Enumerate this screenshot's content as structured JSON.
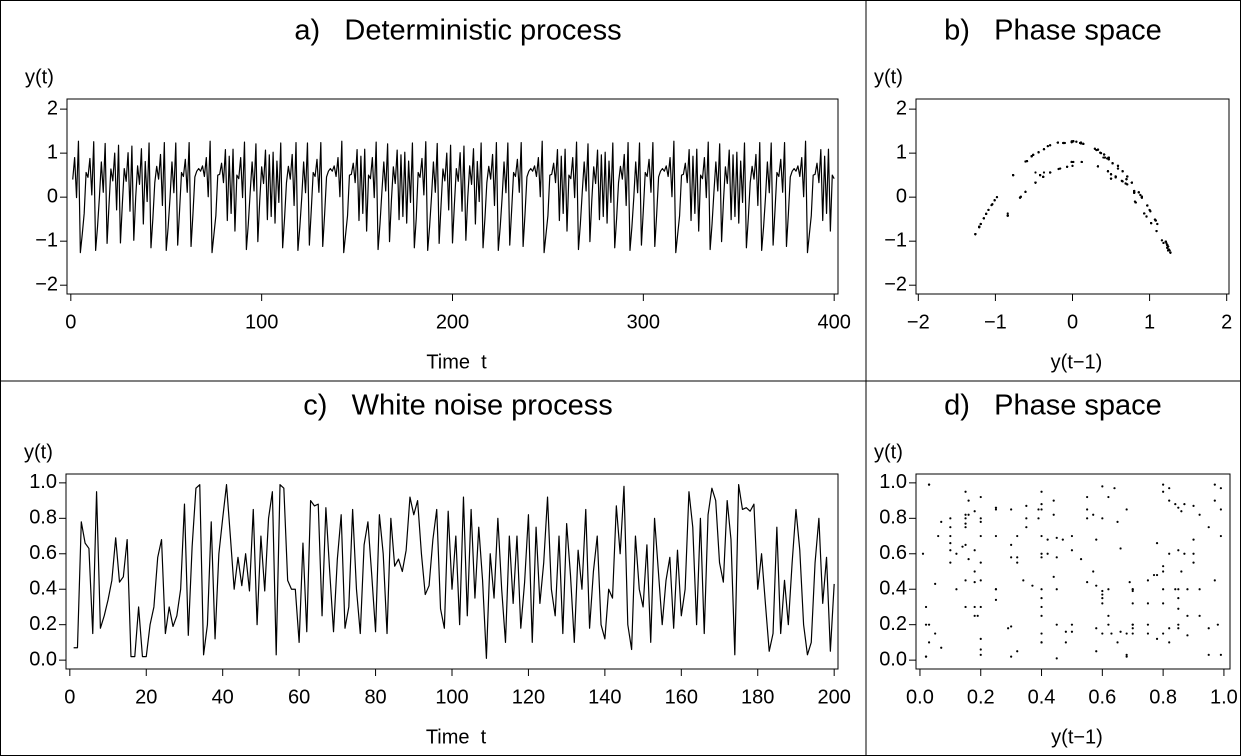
{
  "chart_data": [
    {
      "type": "line",
      "title": "a)   Deterministic process",
      "ylabel": "y(t)",
      "xlabel": "Time  t",
      "color": "#000000",
      "xlim": [
        -2,
        402
      ],
      "ylim": [
        -2.2,
        2.23
      ],
      "xticks": [
        0,
        100,
        200,
        300,
        400
      ],
      "yticks": [
        {
          "value": -2,
          "label": "−2"
        },
        {
          "value": -1,
          "label": "−1"
        },
        0,
        1,
        2
      ],
      "x": [
        1,
        2,
        3,
        4,
        5,
        6,
        7,
        8,
        9,
        10,
        11,
        12,
        13,
        14,
        15,
        16,
        17,
        18,
        19,
        20,
        21,
        22,
        23,
        24,
        25,
        26,
        27,
        28,
        29,
        30,
        31,
        32,
        33,
        34,
        35,
        36,
        37,
        38,
        39,
        40,
        41,
        42,
        43,
        44,
        45,
        46,
        47,
        48,
        49,
        50,
        51,
        52,
        53,
        54,
        55,
        56,
        57,
        58,
        59,
        60,
        61,
        62,
        63,
        64,
        65,
        66,
        67,
        68,
        69,
        70,
        71,
        72,
        73,
        74,
        75,
        76,
        77,
        78,
        79,
        80,
        81,
        82,
        83,
        84,
        85,
        86,
        87,
        88,
        89,
        90,
        91,
        92,
        93,
        94,
        95,
        96,
        97,
        98,
        99,
        100,
        101,
        102,
        103,
        104,
        105,
        106,
        107,
        108,
        109,
        110,
        111,
        112,
        113,
        114,
        115,
        116,
        117,
        118,
        119,
        120,
        121,
        122,
        123,
        124,
        125,
        126,
        127,
        128,
        129,
        130,
        131,
        132,
        133,
        134,
        135,
        136,
        137,
        138,
        139,
        140,
        141,
        142,
        143,
        144,
        145,
        146,
        147,
        148,
        149,
        150,
        151,
        152,
        153,
        154,
        155,
        156,
        157,
        158,
        159,
        160,
        161,
        162,
        163,
        164,
        165,
        166,
        167,
        168,
        169,
        170,
        171,
        172,
        173,
        174,
        175,
        176,
        177,
        178,
        179,
        180,
        181,
        182,
        183,
        184,
        185,
        186,
        187,
        188,
        189,
        190,
        191,
        192,
        193,
        194,
        195,
        196,
        197,
        198,
        199,
        200,
        201,
        202,
        203,
        204,
        205,
        206,
        207,
        208,
        209,
        210,
        211,
        212,
        213,
        214,
        215,
        216,
        217,
        218,
        219,
        220,
        221,
        222,
        223,
        224,
        225,
        226,
        227,
        228,
        229,
        230,
        231,
        232,
        233,
        234,
        235,
        236,
        237,
        238,
        239,
        240,
        241,
        242,
        243,
        244,
        245,
        246,
        247,
        248,
        249,
        250,
        251,
        252,
        253,
        254,
        255,
        256,
        257,
        258,
        259,
        260,
        261,
        262,
        263,
        264,
        265,
        266,
        267,
        268,
        269,
        270,
        271,
        272,
        273,
        274,
        275,
        276,
        277,
        278,
        279,
        280,
        281,
        282,
        283,
        284,
        285,
        286,
        287,
        288,
        289,
        290,
        291,
        292,
        293,
        294,
        295,
        296,
        297,
        298,
        299,
        300,
        301,
        302,
        303,
        304,
        305,
        306,
        307,
        308,
        309,
        310,
        311,
        312,
        313,
        314,
        315,
        316,
        317,
        318,
        319,
        320,
        321,
        322,
        323,
        324,
        325,
        326,
        327,
        328,
        329,
        330,
        331,
        332,
        333,
        334,
        335,
        336,
        337,
        338,
        339,
        340,
        341,
        342,
        343,
        344,
        345,
        346,
        347,
        348,
        349,
        350,
        351,
        352,
        353,
        354,
        355,
        356,
        357,
        358,
        359,
        360,
        361,
        362,
        363,
        364,
        365,
        366,
        367,
        368,
        369,
        370,
        371,
        372,
        373,
        374,
        375,
        376,
        377,
        378,
        379,
        380,
        381,
        382,
        383,
        384,
        385,
        386,
        387,
        388,
        389,
        390,
        391,
        392,
        393,
        394,
        395,
        396,
        397,
        398,
        399,
        400
      ],
      "values": [
        0.4,
        0.9,
        -0.01,
        1.27,
        -1.26,
        -0.84,
        -0.37,
        0.56,
        0.45,
        0.88,
        0.05,
        1.26,
        -1.21,
        -0.67,
        0.01,
        0.8,
        0.11,
        1.22,
        -1.05,
        -0.18,
        0.64,
        0.37,
        1.0,
        -0.29,
        1.18,
        -1.04,
        -0.16,
        0.65,
        0.36,
        1.01,
        -0.32,
        1.16,
        -0.98,
        0.0,
        0.71,
        0.29,
        1.1,
        -0.61,
        0.81,
        -0.1,
        1.23,
        -1.15,
        -0.48,
        0.33,
        0.7,
        0.41,
        0.97,
        -0.19,
        1.24,
        -1.21,
        -0.68,
        -0.01,
        0.8,
        0.1,
        1.23,
        -1.09,
        -0.29,
        0.56,
        0.47,
        0.86,
        0.11,
        1.24,
        -1.12,
        -0.38,
        0.46,
        0.59,
        0.65,
        0.59,
        0.71,
        0.47,
        0.9,
        0.01,
        1.27,
        -1.26,
        -0.84,
        -0.42,
        0.5,
        0.52,
        0.77,
        0.33,
        1.08,
        -0.53,
        0.93,
        -0.37,
        1.09,
        -0.77,
        0.5,
        0.42,
        0.9,
        -0.01,
        1.25,
        -1.19,
        -0.61,
        0.12,
        0.8,
        0.14,
        1.21,
        -1.01,
        -0.07,
        0.69,
        0.31,
        1.07,
        -0.51,
        0.96,
        -0.44,
        1.02,
        -0.59,
        0.82,
        -0.12,
        1.23,
        -1.15,
        -0.48,
        0.33,
        0.7,
        0.41,
        0.97,
        -0.19,
        1.24,
        -1.21,
        -0.68,
        -0.01,
        0.8,
        0.1,
        1.23,
        -1.09,
        -0.29,
        0.56,
        0.47,
        0.86,
        0.11,
        1.24,
        -1.12,
        -0.38,
        0.46,
        0.59,
        0.65,
        0.59,
        0.71,
        0.47,
        0.9,
        0.01,
        1.27,
        -1.26,
        -0.84,
        -0.42,
        0.5,
        0.52,
        0.77,
        0.33,
        1.08,
        -0.53,
        0.93,
        -0.37,
        1.09,
        -0.77,
        0.5,
        0.42,
        0.9,
        -0.01,
        1.25,
        -1.19,
        -0.61,
        0.12,
        0.8,
        0.14,
        1.21,
        -1.01,
        -0.07,
        0.69,
        0.31,
        1.07,
        -0.51,
        0.96,
        -0.44,
        1.02,
        -0.59,
        0.82,
        -0.12,
        1.23,
        -1.15,
        -0.48,
        0.56,
        0.45,
        0.88,
        0.05,
        1.26,
        -1.21,
        -0.67,
        0.01,
        0.8,
        0.11,
        1.22,
        -1.05,
        -0.18,
        0.64,
        0.37,
        1.0,
        -0.29,
        1.18,
        -1.04,
        -0.16,
        0.65,
        0.36,
        1.01,
        -0.32,
        1.16,
        -0.98,
        0.0,
        0.71,
        0.29,
        1.1,
        -0.61,
        0.81,
        -0.1,
        1.23,
        -1.15,
        -0.48,
        0.33,
        0.7,
        0.41,
        0.97,
        -0.19,
        1.24,
        -1.21,
        -0.68,
        -0.01,
        0.8,
        0.1,
        1.23,
        -1.09,
        -0.29,
        0.56,
        0.47,
        0.86,
        0.11,
        1.24,
        -1.12,
        -0.38,
        0.46,
        0.59,
        0.65,
        0.59,
        0.71,
        0.47,
        0.9,
        0.01,
        1.27,
        -1.26,
        -0.84,
        -0.42,
        0.5,
        0.52,
        0.77,
        0.33,
        1.08,
        -0.53,
        0.93,
        -0.37,
        1.09,
        -0.77,
        0.5,
        0.42,
        0.9,
        -0.01,
        1.25,
        -1.19,
        -0.61,
        0.12,
        0.8,
        0.14,
        1.21,
        -1.01,
        -0.07,
        0.69,
        0.31,
        1.07,
        -0.51,
        0.96,
        -0.44,
        1.02,
        -0.59,
        0.82,
        -0.12,
        1.23,
        -1.15,
        -0.48,
        0.33,
        0.7,
        0.41,
        0.97,
        -0.19,
        1.24,
        -1.21,
        -0.68,
        -0.01,
        0.8,
        0.1,
        1.23,
        -1.09,
        -0.29,
        0.56,
        0.47,
        0.86,
        0.11,
        1.24,
        -1.12,
        -0.38,
        0.46,
        0.59,
        0.65,
        0.59,
        0.71,
        0.47,
        0.9,
        0.01,
        1.27,
        -1.26,
        -0.84,
        -0.42,
        0.5,
        0.52,
        0.77,
        0.33,
        1.08,
        -0.53,
        0.93,
        -0.37,
        1.09,
        -0.77,
        0.5,
        0.42,
        0.9,
        -0.01,
        1.25,
        -1.19,
        -0.61,
        0.12,
        0.8,
        0.14,
        1.21,
        -1.01,
        -0.07,
        0.69,
        0.31,
        1.07,
        -0.51,
        0.96,
        -0.44,
        1.02,
        -0.59,
        0.82,
        -0.12,
        1.23,
        -1.15,
        -0.48,
        0.33,
        0.7,
        0.41,
        0.97,
        -0.19,
        1.24,
        -1.21,
        -0.68,
        -0.01,
        0.8,
        0.1,
        1.23,
        -1.09,
        -0.29,
        0.56,
        0.47,
        0.86,
        0.11,
        1.24,
        -1.12,
        -0.38,
        0.46,
        0.59,
        0.65,
        0.59,
        0.71,
        0.47,
        0.9,
        0.01,
        1.27,
        -1.26,
        -0.84,
        -0.42,
        0.5,
        0.52,
        0.77,
        0.33,
        1.08,
        -0.53,
        0.93,
        -0.37,
        1.09,
        -0.77,
        0.5,
        0.42
      ]
    },
    {
      "type": "phase",
      "title": "b)   Phase space",
      "ylabel": "y(t)",
      "xlabel": "y(t−1)",
      "color": "#000000",
      "xlim": [
        -2.03,
        2.03
      ],
      "ylim": [
        -2.2,
        2.23
      ],
      "xticks": [
        {
          "value": -2,
          "label": "−2"
        },
        {
          "value": -1,
          "label": "−1"
        },
        0,
        1,
        2
      ],
      "yticks": [
        {
          "value": -2,
          "label": "−2"
        },
        {
          "value": -1,
          "label": "−1"
        },
        0,
        1,
        2
      ]
    },
    {
      "type": "line",
      "title": "c)   White noise process",
      "ylabel": "y(t)",
      "xlabel": "Time  t",
      "color": "#000000",
      "xlim": [
        -1,
        201
      ],
      "ylim": [
        -0.05,
        1.05
      ],
      "xticks": [
        0,
        20,
        40,
        60,
        80,
        100,
        120,
        140,
        160,
        180,
        200
      ],
      "yticks": [
        {
          "value": 0,
          "label": "0.0"
        },
        0.2,
        0.4,
        0.6,
        0.8,
        {
          "value": 1,
          "label": "1.0"
        }
      ],
      "x": [
        1,
        2,
        3,
        4,
        5,
        6,
        7,
        8,
        9,
        10,
        11,
        12,
        13,
        14,
        15,
        16,
        17,
        18,
        19,
        20,
        21,
        22,
        23,
        24,
        25,
        26,
        27,
        28,
        29,
        30,
        31,
        32,
        33,
        34,
        35,
        36,
        37,
        38,
        39,
        40,
        41,
        42,
        43,
        44,
        45,
        46,
        47,
        48,
        49,
        50,
        51,
        52,
        53,
        54,
        55,
        56,
        57,
        58,
        59,
        60,
        61,
        62,
        63,
        64,
        65,
        66,
        67,
        68,
        69,
        70,
        71,
        72,
        73,
        74,
        75,
        76,
        77,
        78,
        79,
        80,
        81,
        82,
        83,
        84,
        85,
        86,
        87,
        88,
        89,
        90,
        91,
        92,
        93,
        94,
        95,
        96,
        97,
        98,
        99,
        100,
        101,
        102,
        103,
        104,
        105,
        106,
        107,
        108,
        109,
        110,
        111,
        112,
        113,
        114,
        115,
        116,
        117,
        118,
        119,
        120,
        121,
        122,
        123,
        124,
        125,
        126,
        127,
        128,
        129,
        130,
        131,
        132,
        133,
        134,
        135,
        136,
        137,
        138,
        139,
        140,
        141,
        142,
        143,
        144,
        145,
        146,
        147,
        148,
        149,
        150,
        151,
        152,
        153,
        154,
        155,
        156,
        157,
        158,
        159,
        160,
        161,
        162,
        163,
        164,
        165,
        166,
        167,
        168,
        169,
        170,
        171,
        172,
        173,
        174,
        175,
        176,
        177,
        178,
        179,
        180,
        181,
        182,
        183,
        184,
        185,
        186,
        187,
        188,
        189,
        190,
        191,
        192,
        193,
        194,
        195,
        196,
        197,
        198,
        199,
        200
      ],
      "values": [
        0.07,
        0.07,
        0.78,
        0.66,
        0.63,
        0.15,
        0.95,
        0.18,
        0.25,
        0.34,
        0.45,
        0.69,
        0.44,
        0.47,
        0.68,
        0.02,
        0.02,
        0.3,
        0.02,
        0.02,
        0.2,
        0.3,
        0.58,
        0.68,
        0.15,
        0.3,
        0.19,
        0.25,
        0.4,
        0.88,
        0.14,
        0.64,
        0.97,
        0.99,
        0.03,
        0.2,
        0.78,
        0.12,
        0.6,
        0.8,
        0.99,
        0.7,
        0.4,
        0.58,
        0.42,
        0.6,
        0.39,
        0.85,
        0.2,
        0.7,
        0.39,
        0.8,
        0.95,
        0.03,
        0.99,
        0.97,
        0.45,
        0.4,
        0.4,
        0.1,
        0.66,
        0.16,
        0.9,
        0.87,
        0.88,
        0.25,
        0.86,
        0.5,
        0.16,
        0.57,
        0.82,
        0.18,
        0.3,
        0.85,
        0.4,
        0.15,
        0.65,
        0.78,
        0.48,
        0.16,
        0.82,
        0.6,
        0.15,
        0.8,
        0.53,
        0.57,
        0.5,
        0.62,
        0.92,
        0.82,
        0.9,
        0.6,
        0.37,
        0.42,
        0.68,
        0.85,
        0.29,
        0.18,
        0.84,
        0.4,
        0.7,
        0.2,
        0.92,
        0.25,
        0.85,
        0.35,
        0.75,
        0.45,
        0.01,
        0.6,
        0.35,
        0.8,
        0.4,
        0.1,
        0.7,
        0.32,
        0.7,
        0.18,
        0.44,
        0.82,
        0.1,
        0.75,
        0.32,
        0.55,
        0.92,
        0.4,
        0.25,
        0.7,
        0.15,
        0.77,
        0.48,
        0.1,
        0.62,
        0.4,
        0.85,
        0.18,
        0.5,
        0.7,
        0.2,
        0.12,
        0.4,
        0.35,
        0.87,
        0.6,
        0.98,
        0.2,
        0.06,
        0.7,
        0.4,
        0.3,
        0.65,
        0.1,
        0.8,
        0.5,
        0.2,
        0.45,
        0.58,
        0.18,
        0.62,
        0.25,
        0.4,
        0.95,
        0.75,
        0.2,
        0.8,
        0.15,
        0.82,
        0.97,
        0.9,
        0.55,
        0.44,
        0.9,
        0.68,
        0.03,
        0.99,
        0.85,
        0.86,
        0.84,
        0.88,
        0.4,
        0.6,
        0.32,
        0.05,
        0.15,
        0.75,
        0.15,
        0.45,
        0.2,
        0.55,
        0.85,
        0.62,
        0.2,
        0.03,
        0.1,
        0.55,
        0.8,
        0.32,
        0.58,
        0.05,
        0.43
      ]
    },
    {
      "type": "phase",
      "title": "d)   Phase space",
      "ylabel": "y(t)",
      "xlabel": "y(t−1)",
      "color": "#000000",
      "xlim": [
        -0.013,
        1.02
      ],
      "ylim": [
        -0.05,
        1.05
      ],
      "xticks": [
        {
          "value": 0,
          "label": "0.0"
        },
        0.2,
        0.4,
        0.6,
        0.8,
        {
          "value": 1,
          "label": "1.0"
        }
      ],
      "yticks": [
        {
          "value": 0,
          "label": "0.0"
        },
        0.2,
        0.4,
        0.6,
        0.8,
        {
          "value": 1,
          "label": "1.0"
        }
      ]
    }
  ]
}
